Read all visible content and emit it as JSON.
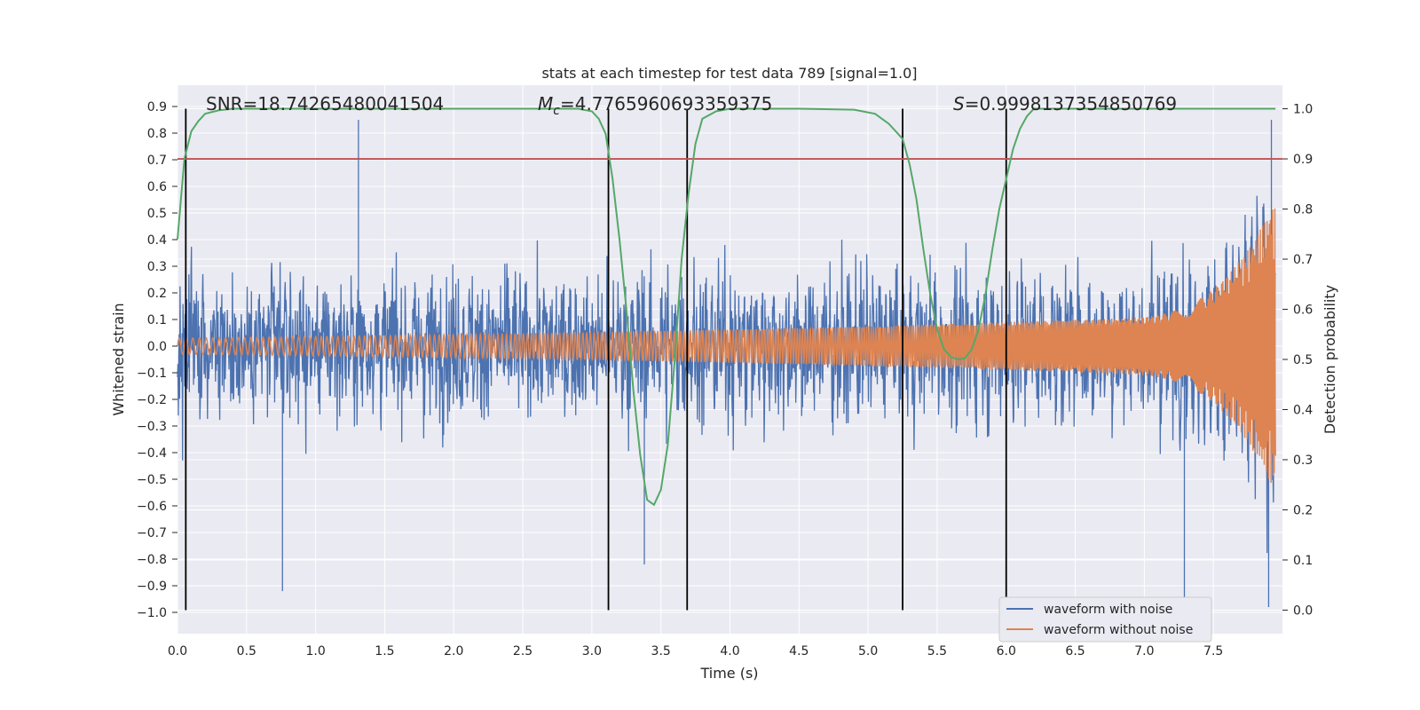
{
  "chart_data": {
    "type": "line",
    "title": "stats at each timestep for test data 789 [signal=1.0]",
    "xlabel": "Time (s)",
    "ylabel": "Whitened strain",
    "y2label": "Detection probability",
    "xlim": [
      0.0,
      8.0
    ],
    "ylim": [
      -1.08,
      0.98
    ],
    "y2lim": [
      -0.047,
      1.047
    ],
    "xticks": [
      0.0,
      0.5,
      1.0,
      1.5,
      2.0,
      2.5,
      3.0,
      3.5,
      4.0,
      4.5,
      5.0,
      5.5,
      6.0,
      6.5,
      7.0,
      7.5
    ],
    "xtick_labels": [
      "0.0",
      "0.5",
      "1.0",
      "1.5",
      "2.0",
      "2.5",
      "3.0",
      "3.5",
      "4.0",
      "4.5",
      "5.0",
      "5.5",
      "6.0",
      "6.5",
      "7.0",
      "7.5"
    ],
    "yticks": [
      0.9,
      0.8,
      0.7,
      0.6,
      0.5,
      0.4,
      0.3,
      0.2,
      0.1,
      0.0,
      -0.1,
      -0.2,
      -0.3,
      -0.4,
      -0.5,
      -0.6,
      -0.7,
      -0.8,
      -0.9,
      -1.0
    ],
    "ytick_labels": [
      "0.9",
      "0.8",
      "0.7",
      "0.6",
      "0.5",
      "0.4",
      "0.3",
      "0.2",
      "0.1",
      "0.0",
      "−0.1",
      "−0.2",
      "−0.3",
      "−0.4",
      "−0.5",
      "−0.6",
      "−0.7",
      "−0.8",
      "−0.9",
      "−1.0"
    ],
    "y2ticks": [
      1.0,
      0.9,
      0.8,
      0.7,
      0.6,
      0.5,
      0.4,
      0.3,
      0.2,
      0.1,
      0.0
    ],
    "y2tick_labels": [
      "1.0",
      "0.9",
      "0.8",
      "0.7",
      "0.6",
      "0.5",
      "0.4",
      "0.3",
      "0.2",
      "0.1",
      "0.0"
    ],
    "annotations": {
      "snr": "SNR=18.74265480041504",
      "mc_symbol": "M",
      "mc_sub": "c",
      "mc_value": "=4.7765960693359375",
      "s_symbol": "S",
      "s_value": "=0.9998137354850769"
    },
    "threshold_y2": 0.9,
    "vlines": [
      0.06,
      3.12,
      3.69,
      5.25,
      6.0
    ],
    "series": [
      {
        "name": "waveform with noise",
        "color": "#4c72b0",
        "noise_sigma": 0.18,
        "notable_peaks": [
          {
            "x": 1.31,
            "y": 0.85
          },
          {
            "x": 0.76,
            "y": -0.92
          },
          {
            "x": 3.38,
            "y": -0.82
          },
          {
            "x": 7.29,
            "y": -0.95
          },
          {
            "x": 7.9,
            "y": -0.98
          },
          {
            "x": 7.92,
            "y": 0.85
          }
        ]
      },
      {
        "name": "waveform without noise",
        "color": "#dd8452",
        "amplitude_start": 0.03,
        "amplitude_at_6s": 0.09,
        "amplitude_peak": 0.52,
        "peak_time": 7.92,
        "end_time": 7.95
      },
      {
        "name": "detection probability",
        "axis": "y2",
        "color": "#55a868",
        "x": [
          0.0,
          0.05,
          0.1,
          0.15,
          0.2,
          0.3,
          0.4,
          0.6,
          0.8,
          1.0,
          2.0,
          2.9,
          3.0,
          3.05,
          3.1,
          3.15,
          3.2,
          3.25,
          3.3,
          3.35,
          3.4,
          3.45,
          3.5,
          3.55,
          3.6,
          3.65,
          3.7,
          3.75,
          3.8,
          3.9,
          4.0,
          4.5,
          4.9,
          5.05,
          5.15,
          5.25,
          5.3,
          5.35,
          5.4,
          5.45,
          5.5,
          5.55,
          5.6,
          5.65,
          5.7,
          5.75,
          5.8,
          5.85,
          5.9,
          5.95,
          6.0,
          6.05,
          6.1,
          6.15,
          6.2,
          6.3,
          6.4,
          6.5,
          7.0,
          7.5,
          7.95
        ],
        "y": [
          0.74,
          0.9,
          0.955,
          0.975,
          0.99,
          0.997,
          1.0,
          1.0,
          1.0,
          1.0,
          1.0,
          1.0,
          0.995,
          0.98,
          0.95,
          0.86,
          0.74,
          0.6,
          0.44,
          0.31,
          0.22,
          0.21,
          0.24,
          0.33,
          0.5,
          0.7,
          0.83,
          0.93,
          0.98,
          0.995,
          1.0,
          1.0,
          0.998,
          0.99,
          0.97,
          0.94,
          0.89,
          0.82,
          0.72,
          0.63,
          0.56,
          0.52,
          0.505,
          0.5,
          0.502,
          0.52,
          0.56,
          0.63,
          0.72,
          0.8,
          0.86,
          0.92,
          0.96,
          0.985,
          1.0,
          1.0,
          1.0,
          1.0,
          1.0,
          1.0,
          1.0
        ]
      }
    ],
    "legend": {
      "location": "lower-right",
      "entries": [
        "waveform with noise",
        "waveform without noise"
      ]
    },
    "colors": {
      "plot_background": "#eaeaf2",
      "grid": "#ffffff",
      "threshold": "#c44e52",
      "vline": "#000000"
    }
  }
}
